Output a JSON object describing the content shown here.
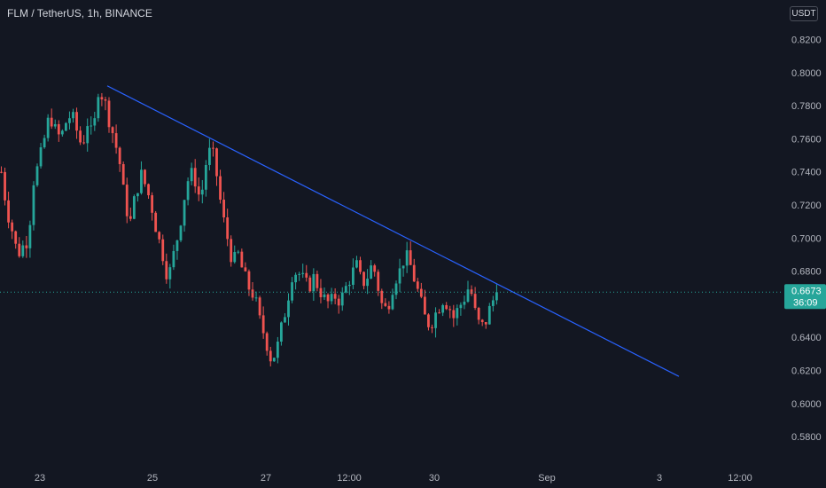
{
  "header": {
    "title": "FLM / TetherUS, 1h, BINANCE",
    "unit": "USDT"
  },
  "colors": {
    "background": "#131722",
    "up": "#26a69a",
    "down": "#ef5350",
    "trendline": "#2962ff",
    "price_label_bg": "#26a69a",
    "axis_text": "#b2b5be"
  },
  "chart_data": {
    "type": "candlestick",
    "title": "FLM / TetherUS, 1h, BINANCE",
    "y_unit": "USDT",
    "ylim": [
      0.572,
      0.8262
    ],
    "y_ticks": [
      "0.8200",
      "0.8000",
      "0.7800",
      "0.7600",
      "0.7400",
      "0.7200",
      "0.7000",
      "0.6800",
      "0.6400",
      "0.6200",
      "0.6000",
      "0.5800"
    ],
    "x_ticks": [
      "23",
      "25",
      "27",
      "12:00",
      "30",
      "Sep",
      "3",
      "12:00"
    ],
    "current_price": {
      "value": "0.6673",
      "countdown": "36:09"
    },
    "trendline": {
      "start_price": 0.792,
      "end_price": 0.6164
    },
    "grid": false,
    "price_path": [
      0.74,
      0.718,
      0.705,
      0.69,
      0.695,
      0.7,
      0.735,
      0.745,
      0.76,
      0.775,
      0.765,
      0.76,
      0.77,
      0.775,
      0.765,
      0.755,
      0.77,
      0.76,
      0.79,
      0.785,
      0.772,
      0.76,
      0.745,
      0.72,
      0.71,
      0.728,
      0.738,
      0.73,
      0.718,
      0.702,
      0.69,
      0.675,
      0.69,
      0.705,
      0.725,
      0.74,
      0.735,
      0.722,
      0.745,
      0.755,
      0.738,
      0.715,
      0.7,
      0.685,
      0.69,
      0.678,
      0.67,
      0.665,
      0.65,
      0.64,
      0.628,
      0.63,
      0.645,
      0.66,
      0.678,
      0.68,
      0.675,
      0.67,
      0.676,
      0.67,
      0.663,
      0.66,
      0.665,
      0.662,
      0.67,
      0.678,
      0.683,
      0.672,
      0.677,
      0.685,
      0.67,
      0.655,
      0.662,
      0.675,
      0.68,
      0.69,
      0.683,
      0.672,
      0.66,
      0.648,
      0.65,
      0.657,
      0.663,
      0.66,
      0.652,
      0.658,
      0.664,
      0.672,
      0.655,
      0.645,
      0.65,
      0.66,
      0.6673
    ]
  }
}
